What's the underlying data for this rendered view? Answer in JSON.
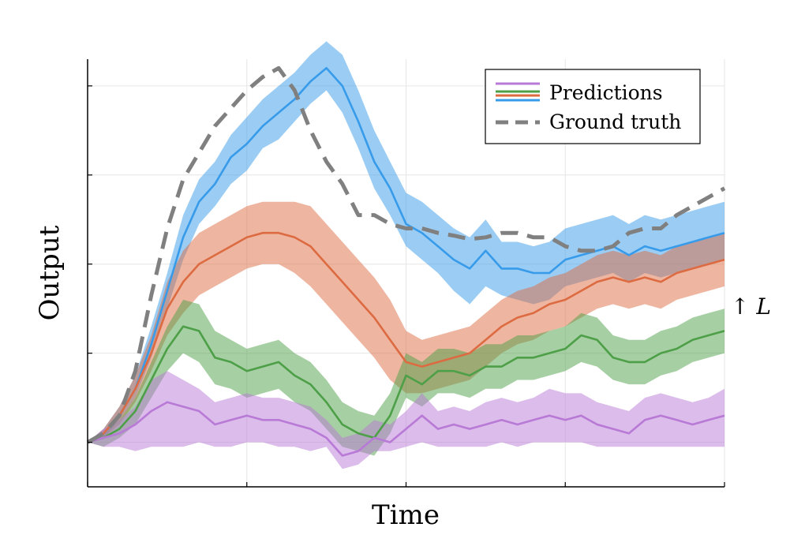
{
  "chart_data": {
    "type": "line",
    "title": "",
    "xlabel": "Time",
    "ylabel": "Output",
    "xlim": [
      0,
      40
    ],
    "ylim": [
      -0.5,
      4.3
    ],
    "xticks": [
      0,
      10,
      20,
      30,
      40
    ],
    "yticks": [
      0,
      1,
      2,
      3,
      4
    ],
    "tick_labels_shown": false,
    "grid": true,
    "legend_position": "top-right",
    "annotation": "↑ L",
    "legend": {
      "predictions_label": "Predictions",
      "ground_truth_label": "Ground truth"
    },
    "x": [
      0,
      1,
      2,
      3,
      4,
      5,
      6,
      7,
      8,
      9,
      10,
      11,
      12,
      13,
      14,
      15,
      16,
      17,
      18,
      19,
      20,
      21,
      22,
      23,
      24,
      25,
      26,
      27,
      28,
      29,
      30,
      31,
      32,
      33,
      34,
      35,
      36,
      37,
      38,
      39,
      40
    ],
    "ground_truth": {
      "color": "#808080",
      "values": [
        0.0,
        0.1,
        0.3,
        0.8,
        1.65,
        2.4,
        2.95,
        3.25,
        3.55,
        3.75,
        3.95,
        4.1,
        4.2,
        3.95,
        3.5,
        3.15,
        2.9,
        2.55,
        2.55,
        2.45,
        2.4,
        2.4,
        2.35,
        2.32,
        2.28,
        2.3,
        2.35,
        2.35,
        2.3,
        2.3,
        2.2,
        2.15,
        2.15,
        2.2,
        2.35,
        2.4,
        2.4,
        2.55,
        2.65,
        2.75,
        2.85
      ]
    },
    "series": [
      {
        "color": "#389bea",
        "values": [
          0.0,
          0.1,
          0.3,
          0.6,
          1.1,
          1.7,
          2.3,
          2.7,
          2.9,
          3.2,
          3.35,
          3.55,
          3.7,
          3.85,
          4.05,
          4.2,
          4.0,
          3.6,
          3.15,
          2.85,
          2.45,
          2.35,
          2.2,
          2.05,
          1.95,
          2.15,
          1.95,
          1.95,
          1.9,
          1.9,
          2.05,
          2.1,
          2.15,
          2.2,
          2.1,
          2.2,
          2.15,
          2.2,
          2.25,
          2.3,
          2.35
        ],
        "lower": [
          0.0,
          0.05,
          0.25,
          0.5,
          0.95,
          1.5,
          2.05,
          2.45,
          2.65,
          2.9,
          3.05,
          3.3,
          3.4,
          3.6,
          3.8,
          3.95,
          3.7,
          3.3,
          2.85,
          2.55,
          2.2,
          2.05,
          1.9,
          1.7,
          1.55,
          1.75,
          1.65,
          1.6,
          1.55,
          1.6,
          1.75,
          1.8,
          1.85,
          1.9,
          1.8,
          1.9,
          1.85,
          1.9,
          1.95,
          2.0,
          2.05
        ],
        "upper": [
          0.0,
          0.15,
          0.4,
          0.75,
          1.3,
          1.9,
          2.55,
          2.95,
          3.15,
          3.45,
          3.65,
          3.85,
          4.0,
          4.15,
          4.35,
          4.5,
          4.35,
          3.95,
          3.5,
          3.15,
          2.8,
          2.7,
          2.55,
          2.4,
          2.3,
          2.5,
          2.25,
          2.25,
          2.2,
          2.25,
          2.4,
          2.45,
          2.5,
          2.55,
          2.45,
          2.55,
          2.5,
          2.55,
          2.6,
          2.65,
          2.7
        ]
      },
      {
        "color": "#dd6b42",
        "values": [
          0.0,
          0.1,
          0.3,
          0.6,
          1.0,
          1.5,
          1.8,
          2.0,
          2.1,
          2.2,
          2.3,
          2.35,
          2.35,
          2.3,
          2.2,
          2.0,
          1.8,
          1.6,
          1.4,
          1.15,
          0.9,
          0.85,
          0.9,
          0.95,
          1.0,
          1.15,
          1.3,
          1.4,
          1.45,
          1.55,
          1.6,
          1.7,
          1.8,
          1.85,
          1.8,
          1.85,
          1.8,
          1.9,
          1.95,
          2.0,
          2.05
        ],
        "lower": [
          0.0,
          0.05,
          0.2,
          0.45,
          0.8,
          1.2,
          1.45,
          1.65,
          1.75,
          1.85,
          1.95,
          2.0,
          2.0,
          1.9,
          1.75,
          1.55,
          1.35,
          1.15,
          0.95,
          0.7,
          0.55,
          0.55,
          0.6,
          0.65,
          0.7,
          0.85,
          1.0,
          1.1,
          1.15,
          1.25,
          1.3,
          1.4,
          1.5,
          1.55,
          1.5,
          1.55,
          1.5,
          1.6,
          1.65,
          1.7,
          1.75
        ],
        "upper": [
          0.0,
          0.15,
          0.4,
          0.75,
          1.2,
          1.8,
          2.15,
          2.35,
          2.45,
          2.55,
          2.65,
          2.7,
          2.7,
          2.7,
          2.65,
          2.45,
          2.25,
          2.05,
          1.85,
          1.6,
          1.25,
          1.15,
          1.2,
          1.25,
          1.3,
          1.45,
          1.6,
          1.7,
          1.75,
          1.85,
          1.9,
          2.0,
          2.1,
          2.15,
          2.1,
          2.15,
          2.1,
          2.2,
          2.25,
          2.3,
          2.35
        ]
      },
      {
        "color": "#4d9f48",
        "values": [
          0.0,
          0.05,
          0.15,
          0.35,
          0.7,
          1.05,
          1.3,
          1.25,
          0.95,
          0.9,
          0.8,
          0.85,
          0.9,
          0.75,
          0.65,
          0.45,
          0.2,
          0.1,
          0.05,
          0.3,
          0.75,
          0.65,
          0.8,
          0.8,
          0.75,
          0.85,
          0.85,
          0.95,
          0.95,
          1.0,
          1.05,
          1.2,
          1.15,
          0.95,
          0.9,
          0.9,
          1.0,
          1.05,
          1.15,
          1.2,
          1.25
        ],
        "lower": [
          0.0,
          -0.05,
          0.05,
          0.2,
          0.5,
          0.8,
          1.0,
          0.9,
          0.65,
          0.6,
          0.5,
          0.55,
          0.6,
          0.45,
          0.35,
          0.15,
          -0.05,
          -0.1,
          -0.15,
          0.1,
          0.5,
          0.4,
          0.55,
          0.55,
          0.5,
          0.6,
          0.6,
          0.7,
          0.7,
          0.75,
          0.8,
          0.9,
          0.85,
          0.7,
          0.65,
          0.65,
          0.75,
          0.8,
          0.9,
          0.95,
          1.0
        ],
        "upper": [
          0.0,
          0.1,
          0.25,
          0.5,
          0.9,
          1.3,
          1.6,
          1.55,
          1.25,
          1.15,
          1.05,
          1.1,
          1.15,
          1.0,
          0.9,
          0.7,
          0.45,
          0.35,
          0.3,
          0.55,
          1.0,
          0.9,
          1.05,
          1.05,
          1.0,
          1.1,
          1.1,
          1.2,
          1.2,
          1.25,
          1.3,
          1.45,
          1.4,
          1.2,
          1.15,
          1.15,
          1.25,
          1.3,
          1.4,
          1.45,
          1.5
        ]
      },
      {
        "color": "#b87ad6",
        "values": [
          0.0,
          0.05,
          0.1,
          0.2,
          0.35,
          0.45,
          0.4,
          0.35,
          0.2,
          0.25,
          0.3,
          0.25,
          0.25,
          0.2,
          0.15,
          0.05,
          -0.15,
          -0.1,
          0.05,
          0.0,
          0.15,
          0.3,
          0.15,
          0.2,
          0.15,
          0.2,
          0.25,
          0.2,
          0.25,
          0.3,
          0.25,
          0.3,
          0.2,
          0.15,
          0.1,
          0.25,
          0.3,
          0.25,
          0.2,
          0.25,
          0.3
        ],
        "lower": [
          0.0,
          -0.05,
          -0.05,
          -0.1,
          -0.05,
          -0.05,
          -0.05,
          0.0,
          -0.05,
          -0.05,
          0.0,
          0.0,
          -0.05,
          -0.05,
          -0.1,
          -0.05,
          -0.3,
          -0.25,
          -0.1,
          -0.1,
          -0.05,
          0.0,
          -0.05,
          -0.05,
          -0.05,
          -0.05,
          0.0,
          -0.05,
          0.0,
          0.0,
          0.0,
          0.0,
          -0.05,
          -0.05,
          -0.05,
          -0.05,
          -0.05,
          -0.05,
          -0.05,
          -0.05,
          -0.05
        ],
        "upper": [
          0.0,
          0.15,
          0.25,
          0.4,
          0.7,
          0.8,
          0.7,
          0.6,
          0.45,
          0.5,
          0.55,
          0.5,
          0.5,
          0.45,
          0.4,
          0.25,
          0.05,
          0.1,
          0.25,
          0.2,
          0.35,
          0.55,
          0.35,
          0.4,
          0.35,
          0.45,
          0.5,
          0.45,
          0.5,
          0.6,
          0.55,
          0.55,
          0.45,
          0.4,
          0.35,
          0.5,
          0.55,
          0.5,
          0.45,
          0.5,
          0.6
        ]
      }
    ]
  }
}
